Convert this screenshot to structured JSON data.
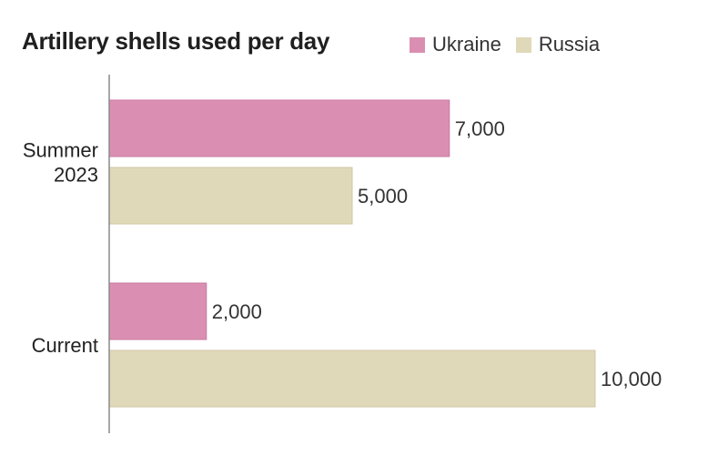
{
  "chart_data": {
    "type": "bar",
    "orientation": "horizontal",
    "title": "Artillery shells used per day",
    "categories": [
      "Summer 2023",
      "Current"
    ],
    "series": [
      {
        "name": "Ukraine",
        "values": [
          7000,
          2000
        ],
        "value_labels": [
          "7,000",
          "2,000"
        ],
        "color": "#da8fb2"
      },
      {
        "name": "Russia",
        "values": [
          5000,
          10000
        ],
        "value_labels": [
          "5,000",
          "10,000"
        ],
        "color": "#e0d9b9"
      }
    ],
    "xlim": [
      0,
      10000
    ],
    "grid": false,
    "legend_position": "top-right"
  }
}
